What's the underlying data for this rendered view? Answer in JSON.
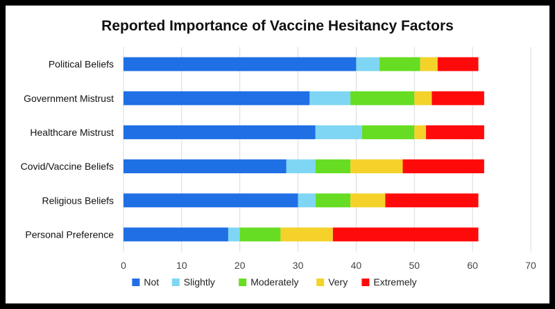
{
  "chart_data": {
    "type": "bar",
    "orientation": "horizontal",
    "stacked": true,
    "title": "Reported Importance of Vaccine Hesitancy Factors",
    "xlabel": "",
    "ylabel": "",
    "categories": [
      "Political Beliefs",
      "Government Mistrust",
      "Healthcare Mistrust",
      "Covid/Vaccine Beliefs",
      "Religious Beliefs",
      "Personal Preference"
    ],
    "series": [
      {
        "name": "Not",
        "color": "#1f6fe5",
        "values": [
          40,
          32,
          33,
          28,
          30,
          18
        ]
      },
      {
        "name": "Slightly",
        "color": "#7fd6f4",
        "values": [
          4,
          7,
          8,
          5,
          3,
          2
        ]
      },
      {
        "name": "Moderately",
        "color": "#66dd22",
        "values": [
          7,
          11,
          9,
          6,
          6,
          7
        ]
      },
      {
        "name": "Very",
        "color": "#f4d22a",
        "values": [
          3,
          3,
          2,
          9,
          6,
          9
        ]
      },
      {
        "name": "Extremely",
        "color": "#ff0a0a",
        "values": [
          7,
          9,
          10,
          14,
          16,
          25
        ]
      }
    ],
    "xlim": [
      0,
      70
    ],
    "xticks": [
      "0",
      "10",
      "20",
      "30",
      "40",
      "50",
      "60",
      "70"
    ],
    "grid": true,
    "legend_position": "bottom"
  }
}
